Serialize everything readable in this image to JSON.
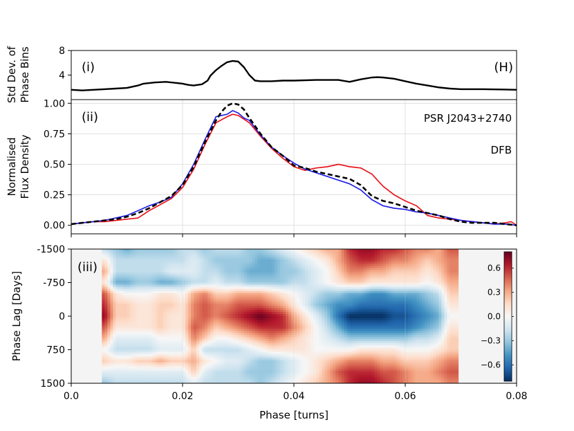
{
  "chart_data": [
    {
      "type": "line",
      "panel": "(i)",
      "corner_label": "(H)",
      "ylabel_lines": [
        "Std Dev. of",
        "Phase Bins"
      ],
      "ylim": [
        0,
        8
      ],
      "yticks": [
        "4",
        "8"
      ],
      "yticks_values": [
        4,
        8
      ],
      "series": [
        {
          "name": "std_dev",
          "color": "#000000",
          "x": [
            0.0,
            0.002,
            0.004,
            0.006,
            0.008,
            0.01,
            0.012,
            0.013,
            0.015,
            0.017,
            0.019,
            0.02,
            0.021,
            0.022,
            0.0235,
            0.0245,
            0.025,
            0.026,
            0.027,
            0.028,
            0.029,
            0.03,
            0.031,
            0.032,
            0.033,
            0.034,
            0.036,
            0.038,
            0.04,
            0.044,
            0.048,
            0.05,
            0.052,
            0.054,
            0.055,
            0.056,
            0.058,
            0.06,
            0.062,
            0.064,
            0.066,
            0.068,
            0.07,
            0.074,
            0.078,
            0.08
          ],
          "values": [
            1.6,
            1.5,
            1.6,
            1.7,
            1.8,
            1.9,
            2.3,
            2.6,
            2.8,
            2.9,
            2.7,
            2.6,
            2.4,
            2.3,
            2.5,
            3.1,
            3.9,
            4.8,
            5.5,
            6.1,
            6.3,
            6.2,
            5.3,
            4.0,
            3.1,
            3.0,
            3.0,
            3.1,
            3.1,
            3.2,
            3.2,
            2.9,
            3.3,
            3.6,
            3.65,
            3.6,
            3.4,
            3.0,
            2.6,
            2.3,
            2.0,
            1.8,
            1.7,
            1.7,
            1.65,
            1.6
          ]
        }
      ]
    },
    {
      "type": "line",
      "panel": "(ii)",
      "ylabel_lines": [
        "Normalised",
        "Flux Density"
      ],
      "ylim": [
        -0.07,
        1.03
      ],
      "yticks": [
        "0.00",
        "0.25",
        "0.50",
        "0.75",
        "1.00"
      ],
      "yticks_values": [
        0,
        0.25,
        0.5,
        0.75,
        1.0
      ],
      "annotations": [
        "PSR J2043+2740",
        "DFB"
      ],
      "series": [
        {
          "name": "mean",
          "color": "#000000",
          "dashed": true,
          "x": [
            0.0,
            0.002,
            0.004,
            0.006,
            0.008,
            0.01,
            0.012,
            0.014,
            0.016,
            0.018,
            0.02,
            0.022,
            0.024,
            0.026,
            0.027,
            0.028,
            0.029,
            0.03,
            0.031,
            0.032,
            0.034,
            0.036,
            0.038,
            0.04,
            0.042,
            0.044,
            0.046,
            0.048,
            0.05,
            0.052,
            0.054,
            0.056,
            0.058,
            0.06,
            0.062,
            0.064,
            0.066,
            0.068,
            0.07,
            0.072,
            0.074,
            0.076,
            0.078,
            0.08
          ],
          "values": [
            0.01,
            0.02,
            0.03,
            0.04,
            0.05,
            0.07,
            0.1,
            0.14,
            0.19,
            0.24,
            0.33,
            0.48,
            0.68,
            0.86,
            0.93,
            0.98,
            1.0,
            0.99,
            0.95,
            0.88,
            0.75,
            0.64,
            0.57,
            0.49,
            0.47,
            0.44,
            0.42,
            0.4,
            0.38,
            0.33,
            0.24,
            0.2,
            0.18,
            0.15,
            0.12,
            0.1,
            0.08,
            0.05,
            0.03,
            0.02,
            0.02,
            0.02,
            0.01,
            0.0
          ]
        },
        {
          "name": "red",
          "color": "#e8141b",
          "x": [
            0.0,
            0.002,
            0.004,
            0.006,
            0.008,
            0.01,
            0.012,
            0.013,
            0.014,
            0.016,
            0.018,
            0.02,
            0.022,
            0.024,
            0.026,
            0.028,
            0.029,
            0.03,
            0.031,
            0.032,
            0.034,
            0.036,
            0.038,
            0.04,
            0.042,
            0.044,
            0.046,
            0.048,
            0.049,
            0.05,
            0.052,
            0.054,
            0.056,
            0.058,
            0.06,
            0.062,
            0.064,
            0.066,
            0.068,
            0.07,
            0.072,
            0.074,
            0.076,
            0.078,
            0.079,
            0.08
          ],
          "values": [
            0.01,
            0.02,
            0.03,
            0.03,
            0.04,
            0.05,
            0.06,
            0.09,
            0.12,
            0.17,
            0.22,
            0.31,
            0.46,
            0.66,
            0.84,
            0.89,
            0.91,
            0.9,
            0.87,
            0.84,
            0.73,
            0.63,
            0.55,
            0.48,
            0.45,
            0.47,
            0.48,
            0.5,
            0.49,
            0.48,
            0.47,
            0.42,
            0.32,
            0.25,
            0.2,
            0.16,
            0.08,
            0.06,
            0.05,
            0.04,
            0.03,
            0.02,
            0.01,
            0.02,
            0.03,
            0.0
          ]
        },
        {
          "name": "blue",
          "color": "#1f1fe6",
          "x": [
            0.0,
            0.002,
            0.004,
            0.006,
            0.008,
            0.01,
            0.012,
            0.014,
            0.016,
            0.018,
            0.02,
            0.022,
            0.024,
            0.026,
            0.028,
            0.029,
            0.03,
            0.031,
            0.032,
            0.034,
            0.036,
            0.038,
            0.04,
            0.042,
            0.044,
            0.046,
            0.048,
            0.05,
            0.052,
            0.054,
            0.056,
            0.058,
            0.06,
            0.062,
            0.064,
            0.066,
            0.068,
            0.07,
            0.072,
            0.074,
            0.076,
            0.078,
            0.08
          ],
          "values": [
            0.01,
            0.02,
            0.03,
            0.04,
            0.06,
            0.08,
            0.12,
            0.16,
            0.19,
            0.23,
            0.34,
            0.5,
            0.7,
            0.89,
            0.91,
            0.94,
            0.92,
            0.88,
            0.86,
            0.74,
            0.64,
            0.57,
            0.51,
            0.46,
            0.43,
            0.4,
            0.37,
            0.34,
            0.29,
            0.21,
            0.16,
            0.14,
            0.13,
            0.11,
            0.1,
            0.08,
            0.06,
            0.04,
            0.03,
            0.02,
            0.01,
            0.01,
            0.0
          ]
        }
      ]
    },
    {
      "type": "heatmap",
      "panel": "(iii)",
      "ylabel": "Phase Lag [Days]",
      "xlabel": "Phase [turns]",
      "xlim": [
        0.0,
        0.08
      ],
      "xticks": [
        "0.0",
        "0.02",
        "0.04",
        "0.06",
        "0.08"
      ],
      "xticks_values": [
        0,
        0.02,
        0.04,
        0.06,
        0.08
      ],
      "ylim": [
        -1500,
        1500
      ],
      "yticks": [
        "-1500",
        "-750",
        "0",
        "750",
        "1500"
      ],
      "yticks_values": [
        -1500,
        -750,
        0,
        750,
        1500
      ],
      "data_xrange": [
        0.0055,
        0.0695
      ],
      "colorbar": {
        "vmin": -0.8,
        "vmax": 0.8,
        "ticks": [
          "0.6",
          "0.3",
          "0.0",
          "−0.3",
          "−0.6"
        ],
        "ticks_values": [
          0.6,
          0.3,
          0.0,
          -0.3,
          -0.6
        ],
        "colors": [
          "#053061",
          "#2166ac",
          "#4393c3",
          "#92c5de",
          "#d1e5f0",
          "#f7f7f7",
          "#fddbc7",
          "#f4a582",
          "#d6604d",
          "#b2182b",
          "#67001f"
        ]
      },
      "phases_x": [
        0.006,
        0.008,
        0.01,
        0.012,
        0.014,
        0.016,
        0.018,
        0.02,
        0.022,
        0.024,
        0.026,
        0.028,
        0.03,
        0.032,
        0.034,
        0.036,
        0.038,
        0.04,
        0.042,
        0.044,
        0.046,
        0.048,
        0.05,
        0.052,
        0.054,
        0.056,
        0.058,
        0.06,
        0.062,
        0.064,
        0.066,
        0.068
      ],
      "lags": [
        -1500,
        -1250,
        -1000,
        -750,
        -500,
        -250,
        0,
        250,
        500,
        750,
        1000,
        1250,
        1500
      ],
      "values": [
        [
          -0.2,
          -0.3,
          -0.4,
          -0.3,
          -0.3,
          -0.3,
          -0.3,
          -0.2,
          -0.2,
          -0.3,
          -0.2,
          -0.2,
          -0.2,
          -0.3,
          -0.3,
          -0.2,
          -0.1,
          0.0,
          0.1,
          0.2,
          0.3,
          0.3,
          0.6,
          0.7,
          0.7,
          0.6,
          0.6,
          0.5,
          0.4,
          0.4,
          0.3,
          0.5
        ],
        [
          0.1,
          -0.2,
          -0.2,
          -0.2,
          -0.2,
          -0.2,
          -0.2,
          -0.2,
          -0.1,
          -0.2,
          -0.3,
          -0.3,
          -0.3,
          -0.3,
          -0.4,
          -0.4,
          -0.3,
          -0.2,
          -0.1,
          0.0,
          0.1,
          0.3,
          0.5,
          0.6,
          0.6,
          0.5,
          0.4,
          0.4,
          0.3,
          0.2,
          0.3,
          0.4
        ],
        [
          0.3,
          -0.2,
          -0.2,
          -0.2,
          -0.2,
          -0.2,
          -0.1,
          -0.1,
          -0.1,
          -0.2,
          -0.2,
          -0.3,
          -0.3,
          -0.4,
          -0.4,
          -0.4,
          -0.3,
          -0.3,
          -0.2,
          -0.1,
          0.0,
          0.2,
          0.4,
          0.4,
          0.3,
          0.3,
          0.2,
          0.2,
          0.2,
          0.1,
          0.2,
          0.4
        ],
        [
          0.1,
          -0.4,
          -0.4,
          -0.3,
          -0.3,
          -0.4,
          -0.4,
          -0.3,
          -0.2,
          -0.2,
          -0.1,
          -0.2,
          -0.2,
          -0.3,
          -0.3,
          -0.3,
          -0.3,
          -0.2,
          -0.2,
          -0.1,
          0.0,
          0.1,
          0.2,
          0.2,
          0.1,
          0.1,
          0.1,
          0.1,
          0.1,
          0.0,
          0.1,
          0.3
        ],
        [
          0.5,
          0.1,
          0.0,
          0.0,
          0.0,
          0.1,
          0.1,
          0.0,
          0.3,
          0.4,
          0.2,
          0.2,
          0.3,
          0.3,
          0.3,
          0.2,
          0.1,
          0.0,
          -0.1,
          -0.2,
          -0.3,
          -0.3,
          -0.4,
          -0.4,
          -0.5,
          -0.5,
          -0.4,
          -0.4,
          -0.4,
          -0.3,
          -0.2,
          0.2
        ],
        [
          0.6,
          0.2,
          0.2,
          0.1,
          0.1,
          0.2,
          0.2,
          0.1,
          0.4,
          0.5,
          0.4,
          0.4,
          0.5,
          0.5,
          0.5,
          0.4,
          0.3,
          0.1,
          -0.1,
          -0.3,
          -0.4,
          -0.5,
          -0.5,
          -0.6,
          -0.6,
          -0.6,
          -0.6,
          -0.6,
          -0.5,
          -0.4,
          -0.3,
          0.1
        ],
        [
          0.7,
          0.2,
          0.2,
          0.1,
          0.1,
          0.2,
          0.1,
          0.1,
          0.4,
          0.5,
          0.4,
          0.5,
          0.6,
          0.7,
          0.8,
          0.7,
          0.6,
          0.3,
          0.1,
          -0.1,
          -0.3,
          -0.6,
          -0.8,
          -0.8,
          -0.8,
          -0.8,
          -0.7,
          -0.7,
          -0.6,
          -0.5,
          -0.4,
          0.0
        ],
        [
          0.5,
          0.1,
          0.1,
          0.1,
          0.1,
          0.2,
          0.1,
          0.1,
          0.5,
          0.4,
          0.2,
          0.3,
          0.4,
          0.5,
          0.6,
          0.6,
          0.6,
          0.4,
          0.2,
          0.0,
          -0.2,
          -0.4,
          -0.6,
          -0.6,
          -0.6,
          -0.6,
          -0.6,
          -0.6,
          -0.5,
          -0.4,
          -0.3,
          0.1
        ],
        [
          0.3,
          -0.1,
          -0.1,
          -0.1,
          -0.1,
          0.0,
          0.0,
          0.0,
          0.4,
          0.2,
          0.0,
          0.0,
          0.1,
          0.2,
          0.3,
          0.4,
          0.3,
          0.2,
          0.1,
          0.0,
          -0.1,
          -0.2,
          -0.3,
          -0.3,
          -0.3,
          -0.3,
          -0.3,
          -0.3,
          -0.2,
          -0.2,
          -0.1,
          0.2
        ],
        [
          0.0,
          -0.2,
          -0.2,
          -0.2,
          -0.2,
          -0.1,
          -0.1,
          -0.1,
          0.2,
          -0.2,
          -0.2,
          -0.2,
          -0.2,
          -0.1,
          0.0,
          0.1,
          0.1,
          0.1,
          0.1,
          0.0,
          0.0,
          0.0,
          0.0,
          0.1,
          0.1,
          0.1,
          0.1,
          0.0,
          0.0,
          0.0,
          0.1,
          0.2
        ],
        [
          0.2,
          0.1,
          0.1,
          0.2,
          0.2,
          0.3,
          0.2,
          0.2,
          0.3,
          0.1,
          0.0,
          -0.1,
          -0.1,
          -0.2,
          -0.3,
          -0.3,
          -0.2,
          -0.1,
          0.0,
          0.1,
          0.2,
          0.3,
          0.4,
          0.4,
          0.4,
          0.3,
          0.3,
          0.2,
          0.2,
          0.2,
          0.3,
          0.4
        ],
        [
          -0.1,
          -0.1,
          -0.1,
          -0.1,
          -0.1,
          -0.1,
          -0.1,
          -0.1,
          0.2,
          -0.1,
          -0.2,
          -0.2,
          -0.2,
          -0.3,
          -0.3,
          -0.3,
          -0.2,
          -0.1,
          0.0,
          0.1,
          0.3,
          0.5,
          0.6,
          0.6,
          0.6,
          0.5,
          0.5,
          0.4,
          0.3,
          0.3,
          0.4,
          0.5
        ],
        [
          -0.3,
          -0.2,
          -0.2,
          -0.2,
          -0.2,
          -0.2,
          -0.2,
          -0.2,
          -0.1,
          -0.2,
          -0.2,
          -0.2,
          -0.2,
          -0.2,
          -0.3,
          -0.2,
          -0.1,
          0.0,
          0.1,
          0.2,
          0.3,
          0.4,
          0.6,
          0.7,
          0.7,
          0.6,
          0.5,
          0.4,
          0.3,
          0.3,
          0.3,
          0.4
        ]
      ]
    }
  ]
}
